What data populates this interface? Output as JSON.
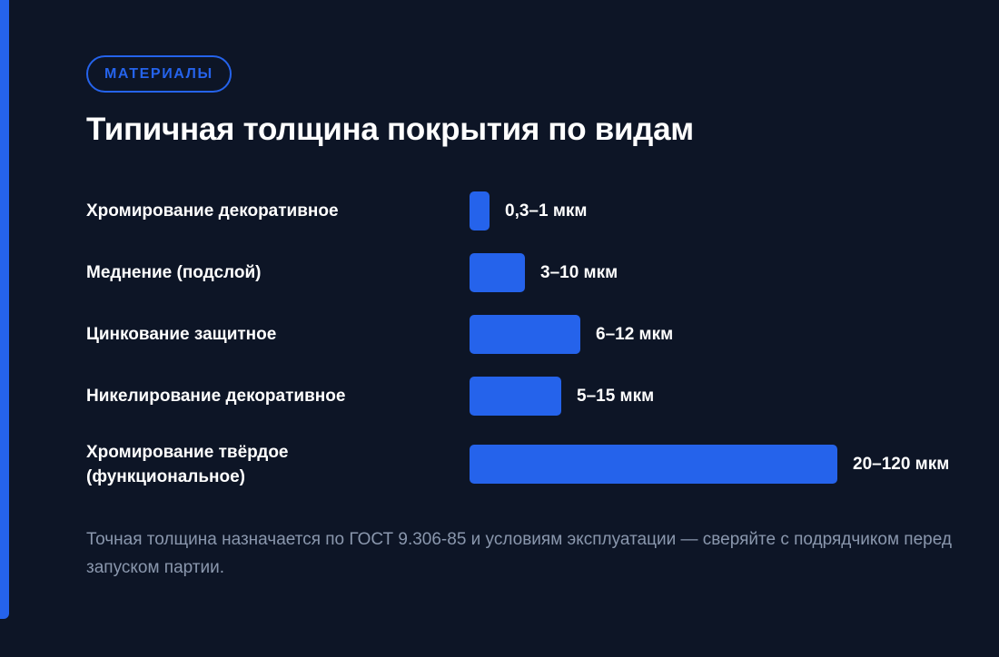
{
  "badge": "МАТЕРИАЛЫ",
  "title": "Типичная толщина покрытия по видам",
  "note": "Точная толщина назначается по ГОСТ 9.306-85 и условиям эксплуатации — сверяйте с подрядчиком перед запуском партии.",
  "colors": {
    "background": "#0d1526",
    "accent": "#2563eb",
    "note_text": "#8a97ad"
  },
  "chart_data": {
    "type": "bar",
    "orientation": "horizontal",
    "unit": "мкм",
    "categories": [
      "Хромирование декоративное",
      "Меднение (подслой)",
      "Цинкование защитное",
      "Никелирование декоративное",
      "Хромирование твёрдое (функциональное)"
    ],
    "value_labels": [
      "0,3–1 мкм",
      "3–10 мкм",
      "6–12 мкм",
      "5–15 мкм",
      "20–120 мкм"
    ],
    "relative_values": [
      0.055,
      0.15,
      0.3,
      0.25,
      1.0
    ],
    "grid": false,
    "legend": "none"
  }
}
